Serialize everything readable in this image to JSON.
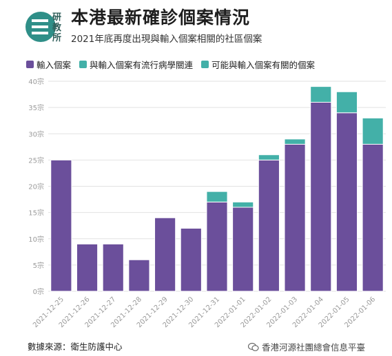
{
  "header": {
    "title": "本港最新確診個案情況",
    "subtitle": "2021年底再度出現與輸入個案相關的社區個案"
  },
  "logo": {
    "text": "研教所"
  },
  "colors": {
    "imported": "#6b4f9b",
    "linked": "#43b0a8",
    "possibly_linked": "#43b0a8",
    "grid": "#e2e2e2",
    "axis_text": "#9a9a9a"
  },
  "footer": {
    "source": "數據來源：衛生防護中心",
    "watermark": "香港河源社團總會信息平臺",
    "watermark_icon": "wechat-icon"
  },
  "chart_data": {
    "type": "bar",
    "stacked": true,
    "categories": [
      "2021-12-25",
      "2021-12-26",
      "2021-12-27",
      "2021-12-28",
      "2021-12-29",
      "2021-12-30",
      "2021-12-31",
      "2022-01-01",
      "2022-01-02",
      "2022-01-03",
      "2022-01-04",
      "2022-01-05",
      "2022-01-06"
    ],
    "series": [
      {
        "name": "輸入個案",
        "color": "#6b4f9b",
        "values": [
          25,
          9,
          9,
          6,
          14,
          12,
          17,
          16,
          25,
          28,
          36,
          34,
          28
        ]
      },
      {
        "name": "與輸入個案有流行病學關連",
        "color": "#43b0a8",
        "values": [
          0,
          0,
          0,
          0,
          0,
          0,
          2,
          1,
          1,
          1,
          3,
          4,
          5
        ]
      },
      {
        "name": "可能與輸入個案有關的個案",
        "color": "#43b0a8",
        "values": [
          0,
          0,
          0,
          0,
          0,
          0,
          0,
          0,
          0,
          0,
          0,
          0,
          0
        ]
      }
    ],
    "ylim": [
      0,
      40
    ],
    "yticks": [
      "0宗",
      "5宗",
      "10宗",
      "15宗",
      "20宗",
      "25宗",
      "30宗",
      "35宗",
      "40宗"
    ],
    "grid": true,
    "legend_position": "top-left"
  }
}
